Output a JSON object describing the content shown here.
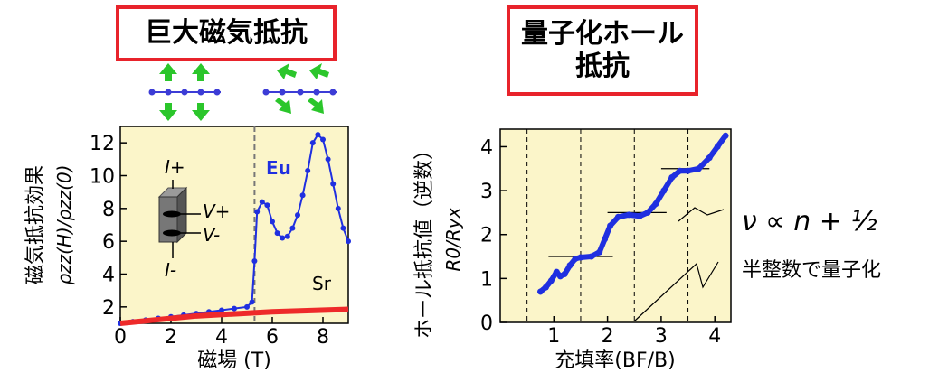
{
  "titles": {
    "left": "巨大磁気抵抗",
    "right_line1": "量子化ホール",
    "right_line2": "抵抗"
  },
  "left_chart": {
    "type": "line",
    "ylabel_main": "磁気抵抗効果",
    "ylabel_sub": "ρzz(H)/ρzz(0)",
    "xlabel": "磁場 (T)",
    "xlim": [
      0,
      9
    ],
    "ylim": [
      1,
      13
    ],
    "xticks": [
      "0",
      "2",
      "4",
      "6",
      "8"
    ],
    "yticks": [
      "2",
      "4",
      "6",
      "8",
      "10",
      "12"
    ],
    "dashed_vline_x": 5.3,
    "series": [
      {
        "name": "Eu",
        "color": "#1f2fe0",
        "points": [
          [
            0,
            1.0
          ],
          [
            0.5,
            1.1
          ],
          [
            1,
            1.2
          ],
          [
            1.5,
            1.3
          ],
          [
            2,
            1.4
          ],
          [
            2.5,
            1.5
          ],
          [
            3,
            1.6
          ],
          [
            3.5,
            1.7
          ],
          [
            4,
            1.8
          ],
          [
            4.5,
            1.9
          ],
          [
            5,
            2.0
          ],
          [
            5.2,
            2.3
          ],
          [
            5.3,
            4.8
          ],
          [
            5.4,
            7.8
          ],
          [
            5.6,
            8.4
          ],
          [
            5.8,
            8.2
          ],
          [
            6,
            7.2
          ],
          [
            6.2,
            6.5
          ],
          [
            6.4,
            6.2
          ],
          [
            6.6,
            6.3
          ],
          [
            6.8,
            6.8
          ],
          [
            7,
            7.6
          ],
          [
            7.2,
            8.8
          ],
          [
            7.4,
            10.3
          ],
          [
            7.6,
            12.0
          ],
          [
            7.8,
            12.5
          ],
          [
            8,
            12.2
          ],
          [
            8.2,
            11.0
          ],
          [
            8.4,
            9.5
          ],
          [
            8.6,
            8.0
          ],
          [
            8.8,
            6.8
          ],
          [
            9,
            6.0
          ]
        ]
      },
      {
        "name": "Sr",
        "color": "#ee2a2a",
        "points": [
          [
            0,
            1.0
          ],
          [
            3,
            1.45
          ],
          [
            6,
            1.7
          ],
          [
            9,
            1.85
          ]
        ]
      }
    ],
    "inset": {
      "I_plus": "I+",
      "I_minus": "I-",
      "V_plus": "V+",
      "V_minus": "V-"
    }
  },
  "right_chart": {
    "type": "scatter",
    "ylabel_main": "ホール抵抗値（逆数）",
    "ylabel_sub": "R0/Ryx",
    "xlabel": "充填率(BF/B)",
    "xlim": [
      0,
      4.3
    ],
    "ylim": [
      0,
      4.4
    ],
    "xticks": [
      "1",
      "2",
      "3",
      "4"
    ],
    "yticks": [
      "0",
      "1",
      "2",
      "3",
      "4"
    ],
    "dashed_vlines_x": [
      0.5,
      1.5,
      2.5,
      3.5
    ],
    "plateaus": [
      {
        "x0": 0.9,
        "x1": 2.1,
        "y": 1.5
      },
      {
        "x0": 2.0,
        "x1": 3.1,
        "y": 2.5
      },
      {
        "x0": 3.0,
        "x1": 3.9,
        "y": 3.5
      }
    ],
    "series": [
      {
        "color": "#1f2fe0",
        "points": [
          [
            0.75,
            0.7
          ],
          [
            0.85,
            0.8
          ],
          [
            0.95,
            0.95
          ],
          [
            1.05,
            1.15
          ],
          [
            1.12,
            1.05
          ],
          [
            1.2,
            1.1
          ],
          [
            1.3,
            1.3
          ],
          [
            1.4,
            1.45
          ],
          [
            1.5,
            1.48
          ],
          [
            1.7,
            1.5
          ],
          [
            1.85,
            1.6
          ],
          [
            1.95,
            1.9
          ],
          [
            2.05,
            2.2
          ],
          [
            2.2,
            2.4
          ],
          [
            2.4,
            2.45
          ],
          [
            2.6,
            2.42
          ],
          [
            2.75,
            2.5
          ],
          [
            2.9,
            2.7
          ],
          [
            3.05,
            3.0
          ],
          [
            3.2,
            3.3
          ],
          [
            3.35,
            3.45
          ],
          [
            3.5,
            3.45
          ],
          [
            3.7,
            3.5
          ],
          [
            3.9,
            3.75
          ],
          [
            4.05,
            4.0
          ],
          [
            4.2,
            4.25
          ]
        ]
      }
    ],
    "annotation": {
      "formula": "ν ∝ n + ½",
      "text": "半整数で量子化"
    }
  },
  "colors": {
    "plot_bg": "#fbf5c9",
    "arrow_green": "#2bc62b",
    "chain_blue": "#3c3cd6"
  }
}
